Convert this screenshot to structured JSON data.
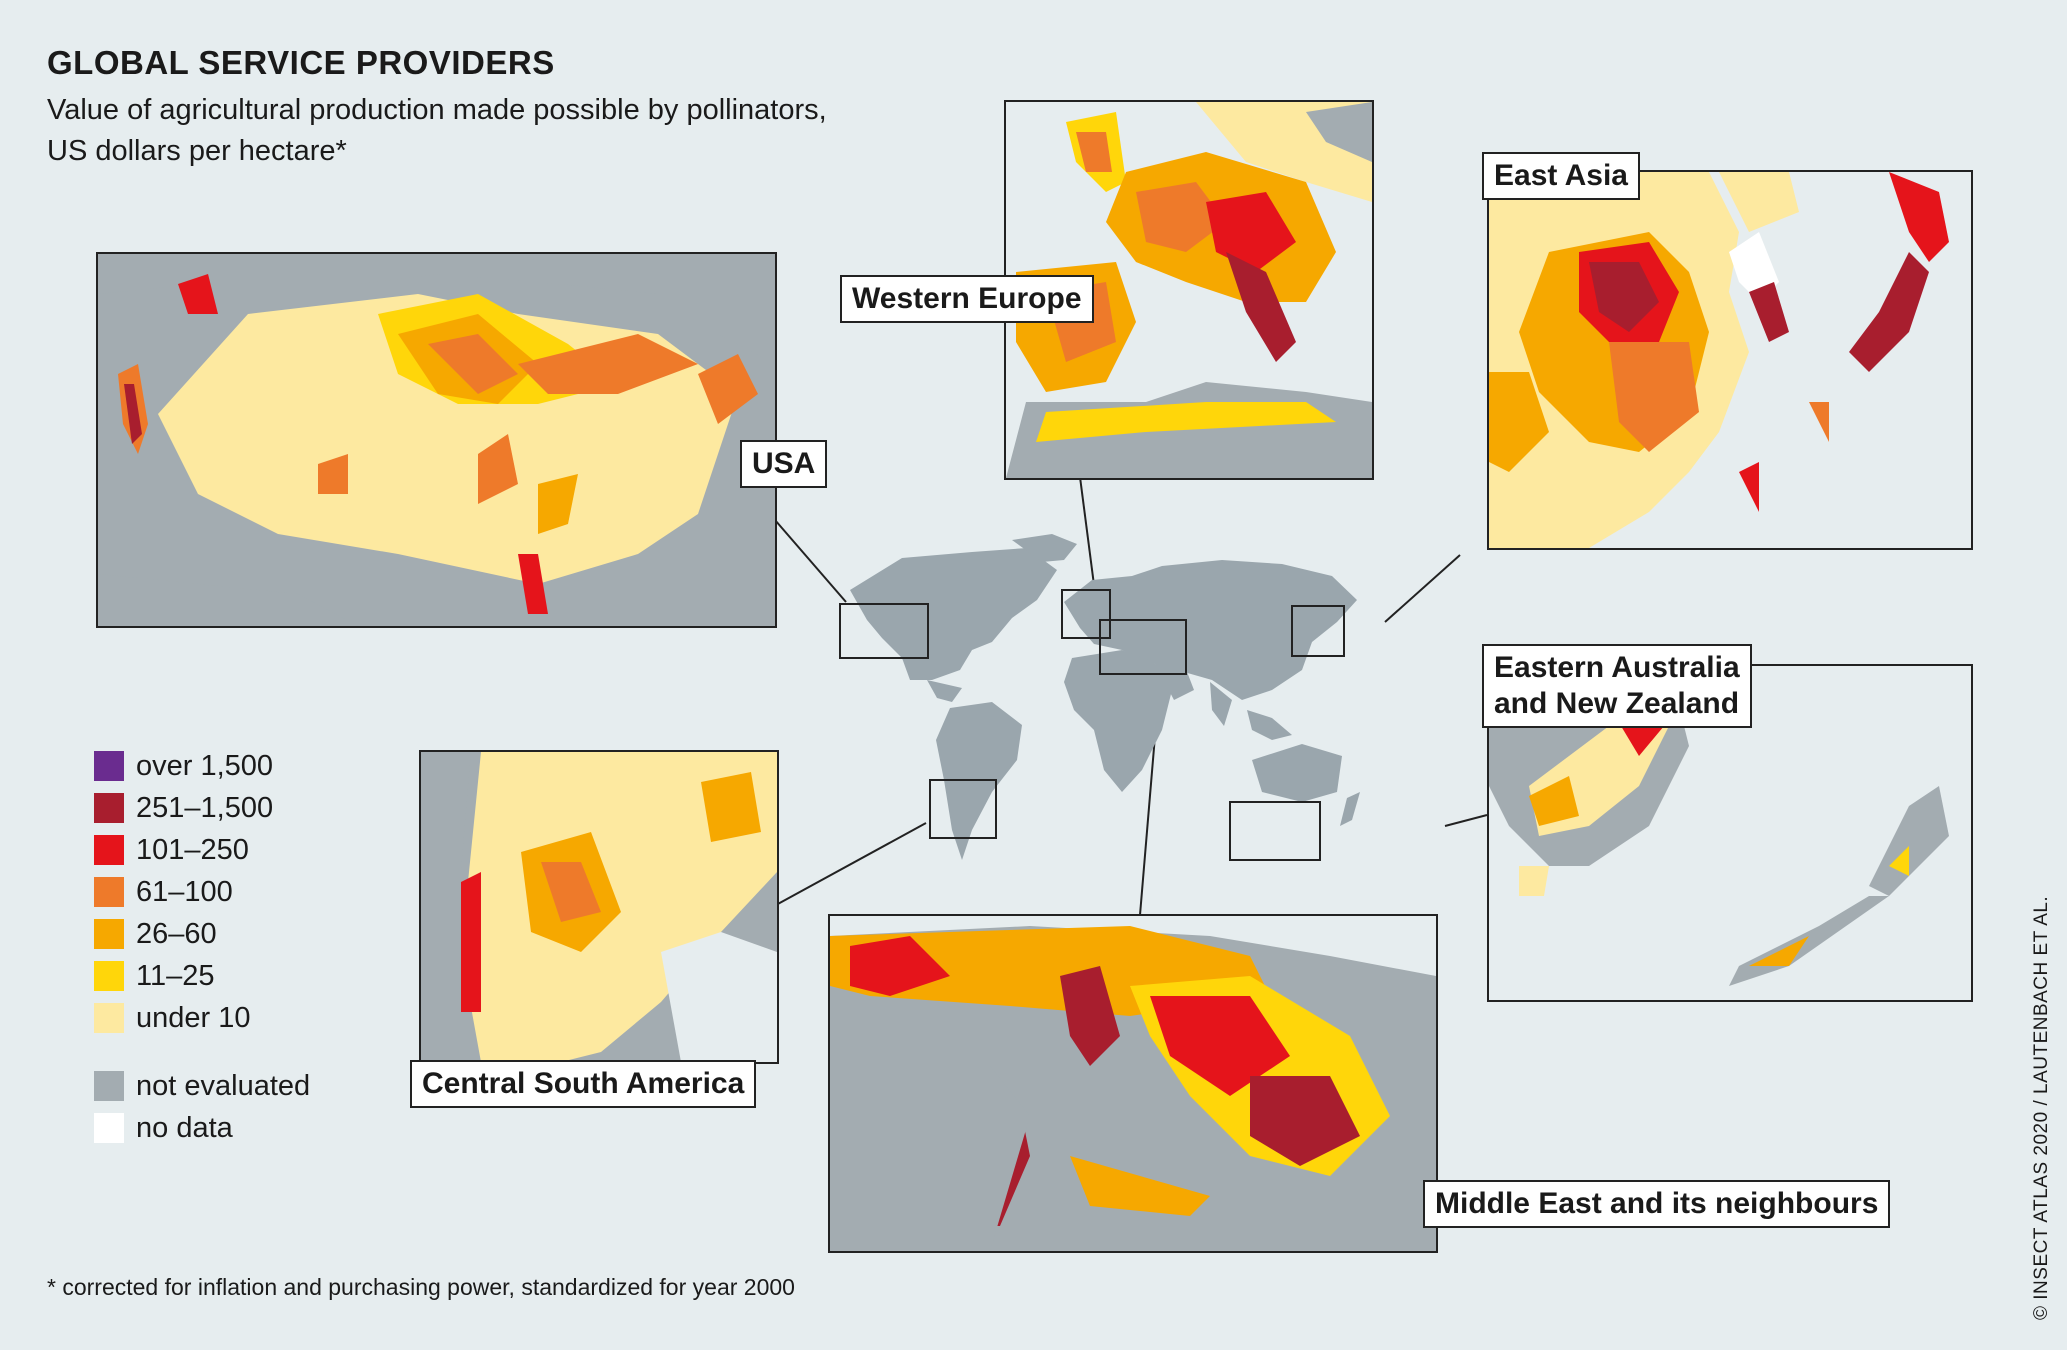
{
  "title": "GLOBAL SERVICE PROVIDERS",
  "subtitle_line1": "Value of agricultural production made possible by pollinators,",
  "subtitle_line2": "US dollars per hectare*",
  "footnote": "* corrected for inflation and purchasing power, standardized for year 2000",
  "credit": "© INSECT ATLAS 2020 / LAUTENBACH ET AL.",
  "regions": {
    "usa": "USA",
    "western_europe": "Western Europe",
    "east_asia": "East Asia",
    "australia_line1": "Eastern Australia",
    "australia_line2": "and New Zealand",
    "south_america": "Central South America",
    "middle_east": "Middle East and its neighbours"
  },
  "legend": [
    {
      "label": "over 1,500",
      "color": "#6a2c8f"
    },
    {
      "label": "251–1,500",
      "color": "#a81e2e"
    },
    {
      "label": "101–250",
      "color": "#e5141b"
    },
    {
      "label": "61–100",
      "color": "#ee7a2a"
    },
    {
      "label": "26–60",
      "color": "#f6a800"
    },
    {
      "label": "11–25",
      "color": "#ffd60a"
    },
    {
      "label": "under 10",
      "color": "#fde9a0"
    }
  ],
  "legend_extra": [
    {
      "label": "not evaluated",
      "color": "#a3acb1"
    },
    {
      "label": "no data",
      "color": "#ffffff"
    }
  ]
}
